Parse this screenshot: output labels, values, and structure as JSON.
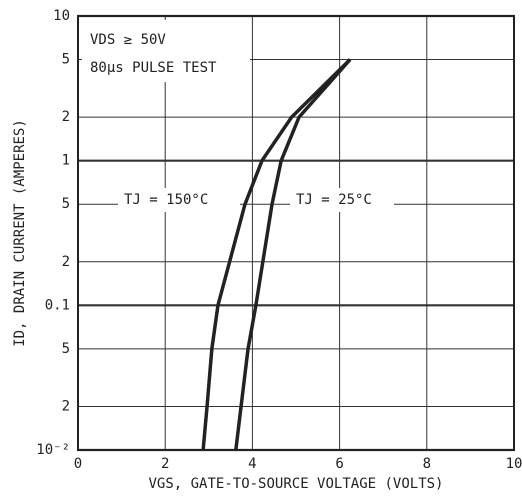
{
  "chart_data": {
    "type": "line",
    "xlabel": "VGS, GATE-TO-SOURCE VOLTAGE (VOLTS)",
    "ylabel": "ID, DRAIN CURRENT (AMPERES)",
    "annotations": [
      "VDS ≥ 50V",
      "80µs PULSE TEST"
    ],
    "xlim": [
      0,
      10
    ],
    "xticks": [
      0,
      2,
      4,
      6,
      8,
      10
    ],
    "ylim": [
      0.01,
      10
    ],
    "log_y": true,
    "grid": true,
    "yticks": [
      10,
      5,
      2,
      1,
      {
        "value": 0.5,
        "label": "5"
      },
      {
        "value": 0.2,
        "label": "2"
      },
      0.1,
      {
        "value": 0.05,
        "label": "5"
      },
      {
        "value": 0.02,
        "label": "2"
      },
      {
        "value": 0.01,
        "label": "10⁻²"
      }
    ],
    "series": [
      {
        "name": "TJ = 150°C",
        "color": "#222222",
        "x": [
          2.87,
          2.96,
          3.07,
          3.21,
          3.83,
          4.22,
          4.9,
          6.24
        ],
        "values": [
          0.01,
          0.02,
          0.05,
          0.1,
          0.5,
          1,
          2,
          5
        ]
      },
      {
        "name": "TJ = 25°C",
        "color": "#222222",
        "x": [
          3.62,
          3.74,
          3.9,
          4.08,
          4.45,
          4.66,
          5.07,
          6.24
        ],
        "values": [
          0.01,
          0.02,
          0.05,
          0.1,
          0.5,
          1,
          2,
          5
        ]
      }
    ]
  }
}
